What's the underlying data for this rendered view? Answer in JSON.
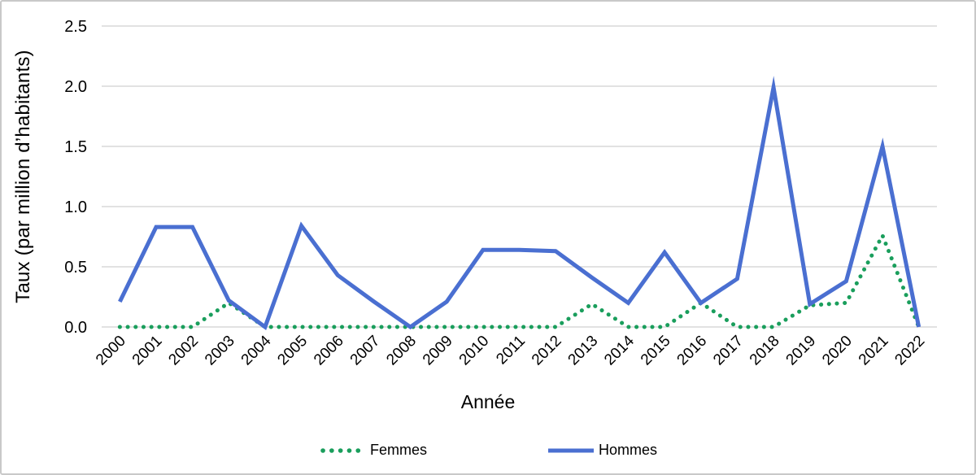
{
  "figure": {
    "background": "#ffffff",
    "border_color": "#c9c9c9"
  },
  "chart_data": {
    "type": "line",
    "title": "",
    "xlabel": "Année",
    "ylabel": "Taux (par million d’habitants)",
    "x": [
      "2000",
      "2001",
      "2002",
      "2003",
      "2004",
      "2005",
      "2006",
      "2007",
      "2008",
      "2009",
      "2010",
      "2011",
      "2012",
      "2013",
      "2014",
      "2015",
      "2016",
      "2017",
      "2018",
      "2019",
      "2020",
      "2021",
      "2022"
    ],
    "series": [
      {
        "name": "Femmes",
        "style": "dotted",
        "color": "#1a9e5c",
        "values": [
          0,
          0,
          0,
          0.2,
          0,
          0,
          0,
          0,
          0,
          0,
          0,
          0,
          0,
          0.19,
          0,
          0,
          0.2,
          0,
          0,
          0.18,
          0.2,
          0.76,
          0
        ]
      },
      {
        "name": "Hommes",
        "style": "solid",
        "color": "#4a6fd1",
        "values": [
          0.21,
          0.83,
          0.83,
          0.22,
          0,
          0.84,
          0.43,
          0.21,
          0,
          0.21,
          0.64,
          0.64,
          0.63,
          0.41,
          0.2,
          0.62,
          0.2,
          0.4,
          1.99,
          0.19,
          0.38,
          1.5,
          0
        ]
      }
    ],
    "ylim": [
      0,
      2.5
    ],
    "yticks": [
      0,
      0.5,
      1,
      1.5,
      2,
      2.5
    ],
    "ytick_labels": [
      "0.0",
      "0.5",
      "1.0",
      "1.5",
      "2.0",
      "2.5"
    ],
    "grid": "horizontal",
    "gridline_color": "#d9d9d9",
    "tick_label_color": "#000000",
    "tick_label_rotation": -45,
    "legend_position": "bottom"
  }
}
